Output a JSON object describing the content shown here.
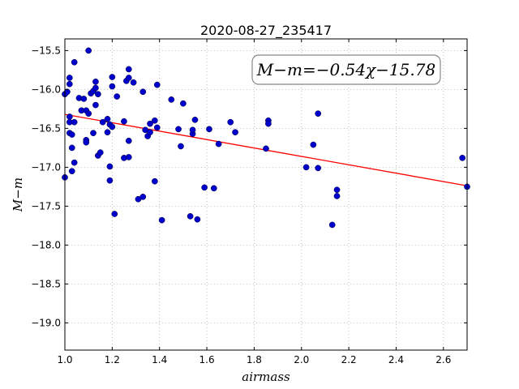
{
  "chart_data": {
    "type": "scatter",
    "title": "2020-08-27_235417",
    "xlabel": "airmass",
    "ylabel": "M−m",
    "xlim": [
      1.0,
      2.7
    ],
    "ylim": [
      -19.35,
      -15.35
    ],
    "y_inverted": true,
    "grid": true,
    "xticks": [
      1.0,
      1.2,
      1.4,
      1.6,
      1.8,
      2.0,
      2.2,
      2.4,
      2.6
    ],
    "xtick_labels": [
      "1.0",
      "1.2",
      "1.4",
      "1.6",
      "1.8",
      "2.0",
      "2.2",
      "2.4",
      "2.6"
    ],
    "yticks": [
      -15.5,
      -16.0,
      -16.5,
      -17.0,
      -17.5,
      -18.0,
      -18.5,
      -19.0
    ],
    "ytick_labels": [
      "−15.5",
      "−16.0",
      "−16.5",
      "−17.0",
      "−17.5",
      "−18.0",
      "−18.5",
      "−19.0"
    ],
    "annotation": "M−m=−0.54χ−15.78",
    "colors": {
      "points": "#0000cc",
      "fit_line": "#ff0000",
      "grid": "#b0b0b0"
    },
    "fit": {
      "slope": -0.54,
      "intercept": -15.78
    },
    "series": [
      {
        "x": [
          1.0,
          1.0,
          1.01,
          1.02,
          1.02,
          1.02,
          1.02,
          1.02,
          1.03,
          1.03,
          1.03,
          1.04,
          1.04,
          1.04,
          1.06,
          1.07,
          1.08,
          1.09,
          1.09,
          1.09,
          1.1,
          1.1,
          1.11,
          1.12,
          1.12,
          1.13,
          1.13,
          1.13,
          1.14,
          1.14,
          1.15,
          1.16,
          1.18,
          1.18,
          1.19,
          1.19,
          1.19,
          1.2,
          1.2,
          1.2,
          1.21,
          1.22,
          1.25,
          1.25,
          1.26,
          1.27,
          1.27,
          1.27,
          1.27,
          1.29,
          1.31,
          1.33,
          1.33,
          1.34,
          1.35,
          1.36,
          1.36,
          1.38,
          1.38,
          1.39,
          1.39,
          1.41,
          1.45,
          1.48,
          1.49,
          1.5,
          1.53,
          1.54,
          1.54,
          1.55,
          1.56,
          1.59,
          1.61,
          1.63,
          1.65,
          1.7,
          1.72,
          1.85,
          1.86,
          1.86,
          2.02,
          2.05,
          2.07,
          2.07,
          2.13,
          2.15,
          2.15,
          2.68,
          2.7
        ],
        "y": [
          -17.13,
          -16.06,
          -16.03,
          -15.85,
          -15.93,
          -16.35,
          -16.42,
          -16.56,
          -16.75,
          -16.58,
          -17.05,
          -16.94,
          -16.42,
          -15.65,
          -16.11,
          -16.27,
          -16.12,
          -16.27,
          -16.65,
          -16.68,
          -15.5,
          -16.31,
          -16.05,
          -16.02,
          -16.56,
          -16.2,
          -15.98,
          -15.9,
          -16.06,
          -16.85,
          -16.81,
          -16.42,
          -16.55,
          -16.38,
          -17.17,
          -16.99,
          -16.45,
          -15.96,
          -15.84,
          -16.48,
          -17.6,
          -16.09,
          -16.41,
          -16.88,
          -15.89,
          -15.74,
          -15.85,
          -16.66,
          -16.87,
          -15.91,
          -17.41,
          -16.03,
          -17.38,
          -16.52,
          -16.6,
          -16.55,
          -16.44,
          -17.18,
          -16.4,
          -15.94,
          -16.49,
          -17.68,
          -16.13,
          -16.51,
          -16.73,
          -16.18,
          -17.63,
          -16.57,
          -16.52,
          -16.39,
          -17.67,
          -17.26,
          -16.51,
          -17.27,
          -16.7,
          -16.42,
          -16.55,
          -16.76,
          -16.4,
          -16.44,
          -17.0,
          -16.71,
          -17.01,
          -16.31,
          -17.74,
          -17.37,
          -17.29,
          -16.88,
          -17.25
        ]
      }
    ]
  }
}
